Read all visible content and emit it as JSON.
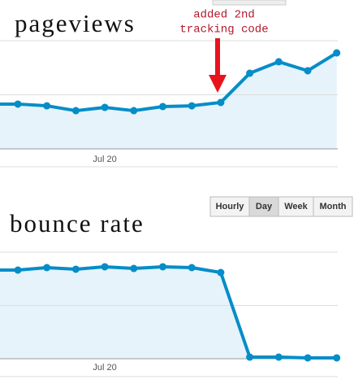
{
  "chart_data": [
    {
      "type": "line",
      "title": "pageviews",
      "categories": [
        null,
        null,
        null,
        "Jul 20",
        null,
        null,
        null,
        null,
        null,
        null,
        null,
        null
      ],
      "values": [
        41.4,
        39.8,
        35.3,
        38.3,
        35.3,
        39.1,
        39.8,
        42.9,
        69.9,
        80.5,
        72.2,
        88.7
      ],
      "color": "#058dc7",
      "ylim": [
        0,
        100
      ],
      "yticks": [
        0,
        50,
        100
      ],
      "grid": true,
      "annotation": [
        "added 2nd",
        "tracking code"
      ]
    },
    {
      "type": "line",
      "title": "bounce rate",
      "categories": [
        null,
        null,
        null,
        "Jul 20",
        null,
        null,
        null,
        null,
        null,
        null,
        null,
        null
      ],
      "values": [
        83.2,
        85.5,
        84.0,
        86.3,
        84.7,
        86.3,
        85.5,
        80.9,
        1.5,
        1.5,
        0.8,
        0.8
      ],
      "color": "#058dc7",
      "ylim": [
        0,
        100
      ],
      "yticks": [
        0,
        50,
        100
      ],
      "grid": true,
      "buttons": [
        "Hourly",
        "Day",
        "Week",
        "Month"
      ],
      "selected_button": 1
    }
  ]
}
